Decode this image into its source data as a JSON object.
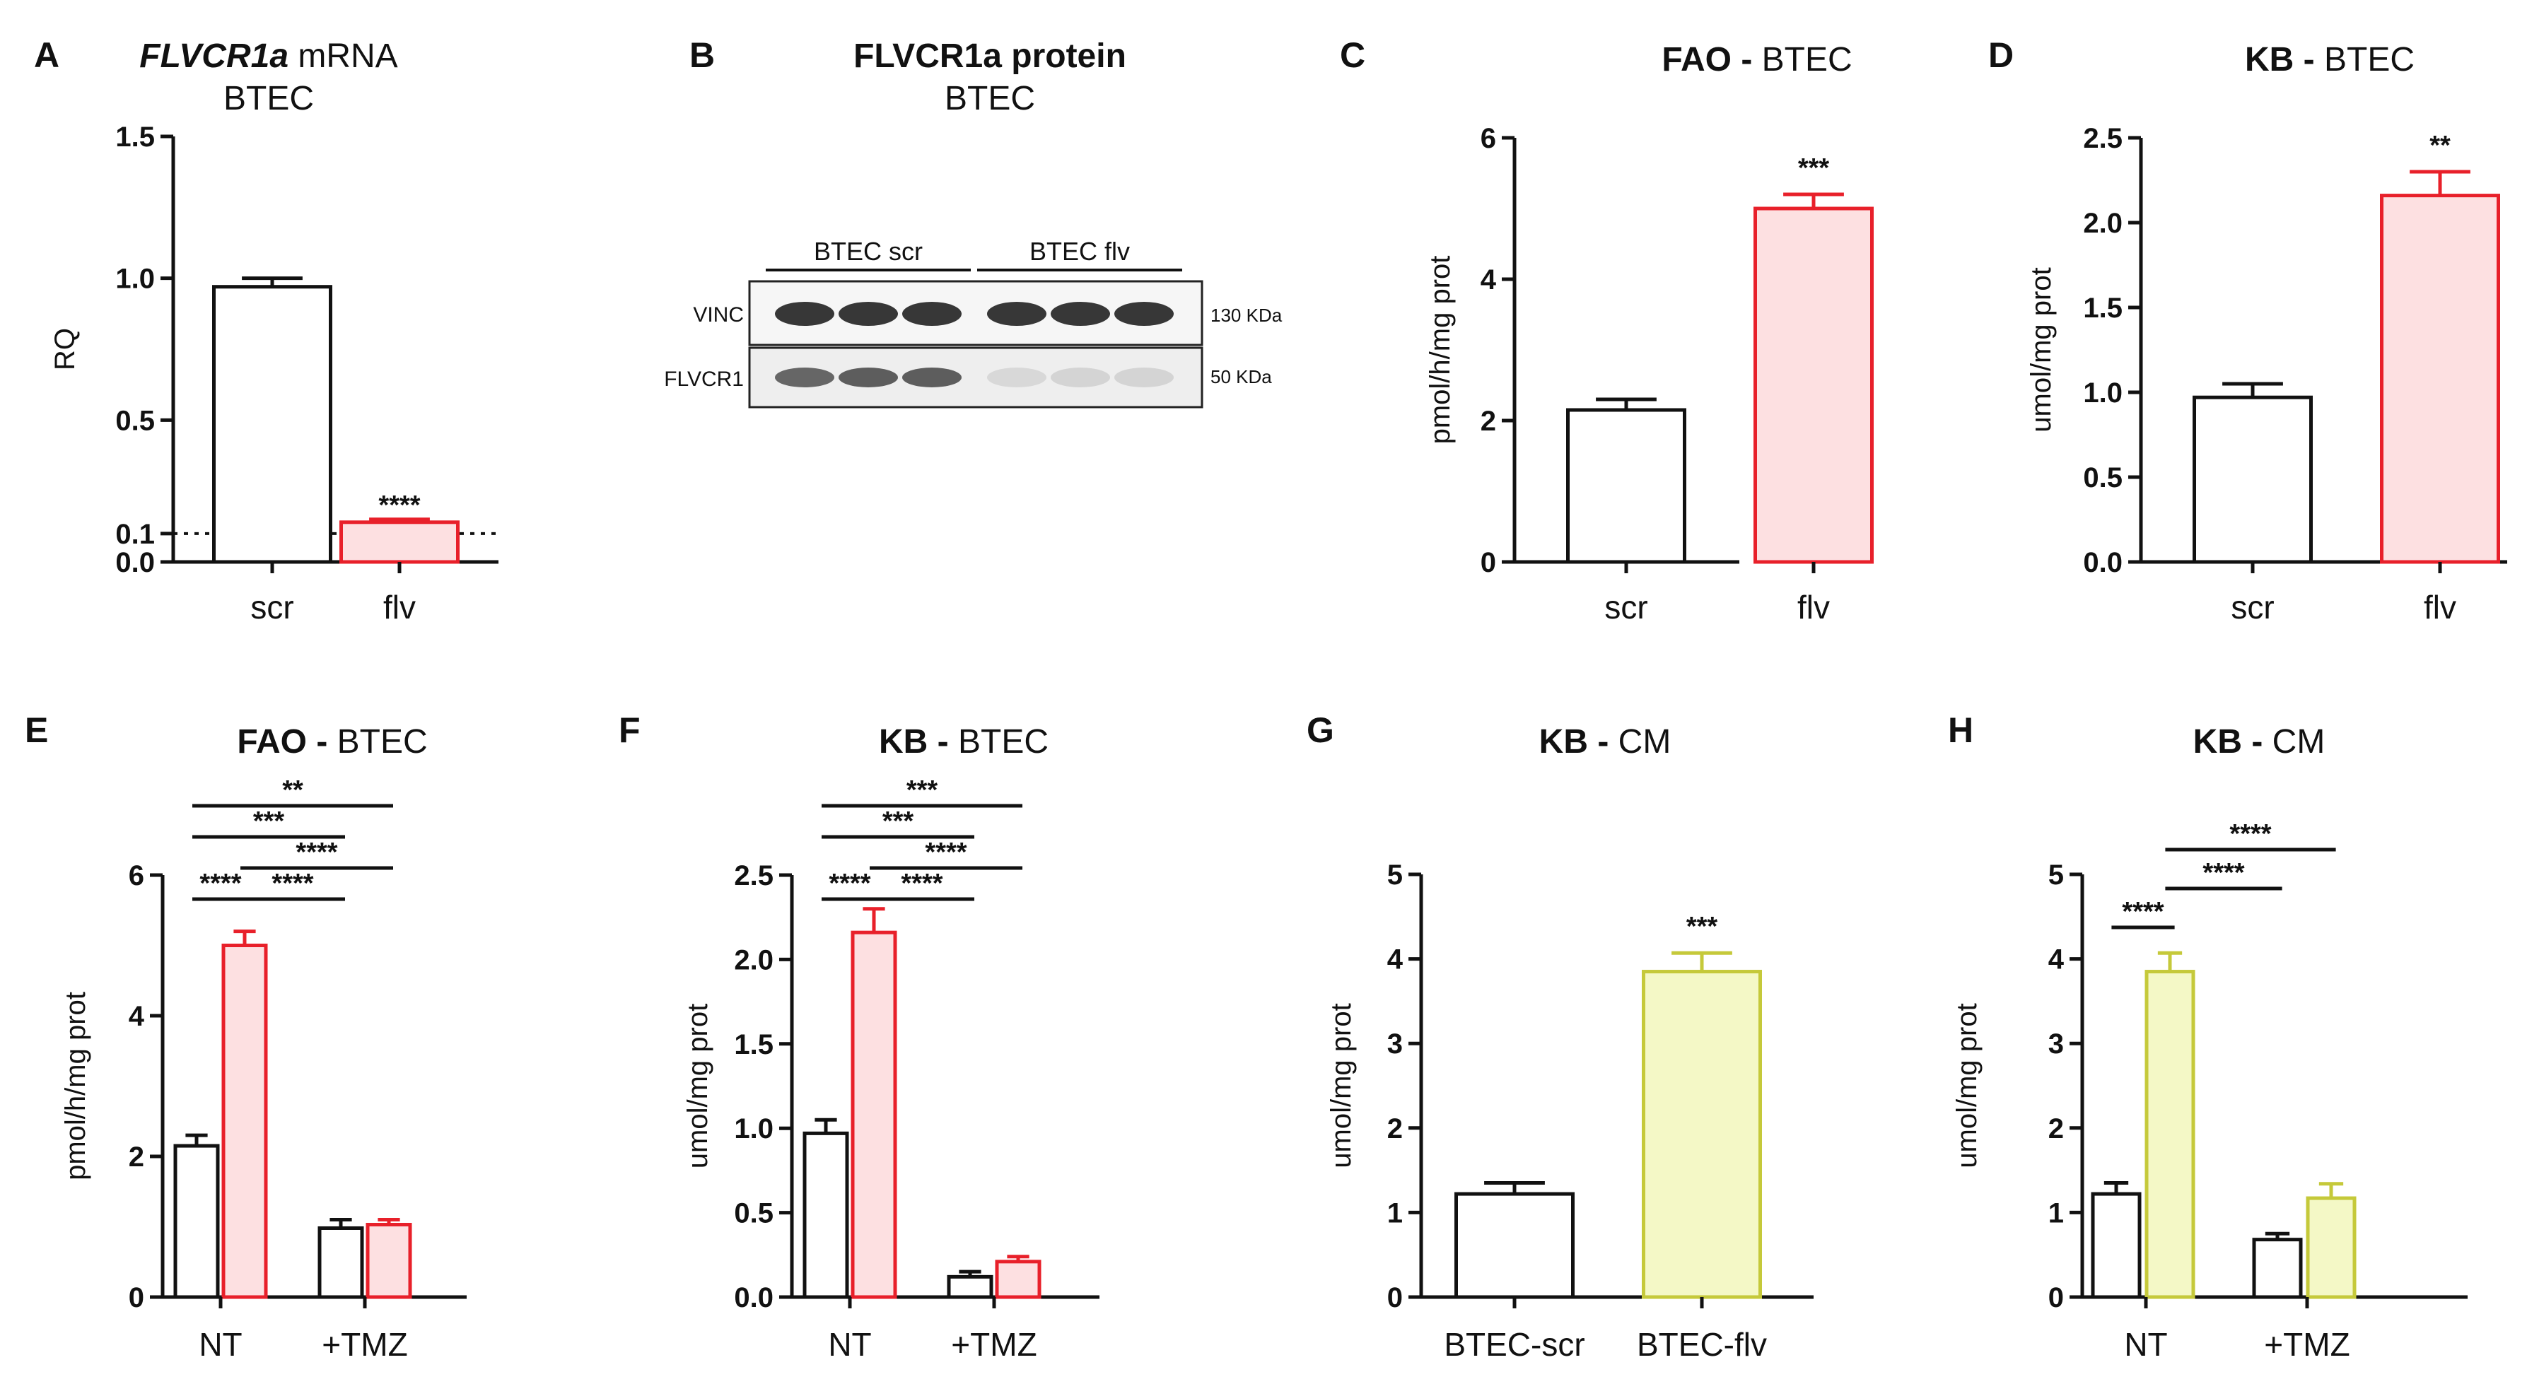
{
  "colors": {
    "axis": "#111111",
    "control_edge": "#111111",
    "control_fill": "#ffffff",
    "red_edge": "#e8202a",
    "red_fill": "#fde0e1",
    "yellow_edge": "#c5c93a",
    "yellow_fill": "#f4f8c6"
  },
  "chart_data": [
    {
      "id": "A",
      "panel_letter": "A",
      "type": "bar",
      "title_bold": "FLVCR1a",
      "title_rest": " mRNA",
      "title_italic": true,
      "subtitle": "BTEC",
      "ylabel": "RQ",
      "ylim": [
        0,
        1.5
      ],
      "yticks": [
        {
          "v": 0,
          "label": "0.0"
        },
        {
          "v": 0.1,
          "label": "0.1"
        },
        {
          "v": 0.5,
          "label": "0.5"
        },
        {
          "v": 1.0,
          "label": "1.0"
        },
        {
          "v": 1.5,
          "label": "1.5"
        }
      ],
      "categories": [
        "scr",
        "flv"
      ],
      "bars": [
        {
          "x": 0,
          "value": 0.97,
          "error": 0.03,
          "style": "control"
        },
        {
          "x": 1,
          "value": 0.14,
          "error": 0.01,
          "style": "red"
        }
      ],
      "reference_line": 0.1,
      "significance_above": [
        {
          "bar": 1,
          "label": "****"
        }
      ],
      "brackets": []
    },
    {
      "id": "C",
      "panel_letter": "C",
      "type": "bar",
      "title_bold": "FAO - ",
      "title_rest": "BTEC",
      "ylabel": "pmol/h/mg prot",
      "ylim": [
        0,
        6
      ],
      "yticks": [
        {
          "v": 0,
          "label": "0"
        },
        {
          "v": 2,
          "label": "2"
        },
        {
          "v": 4,
          "label": "4"
        },
        {
          "v": 6,
          "label": "6"
        }
      ],
      "categories": [
        "scr",
        "flv"
      ],
      "bars": [
        {
          "x": 0,
          "value": 2.15,
          "error": 0.15,
          "style": "control"
        },
        {
          "x": 1,
          "value": 5.0,
          "error": 0.2,
          "style": "red"
        }
      ],
      "significance_above": [
        {
          "bar": 1,
          "label": "***"
        }
      ],
      "brackets": []
    },
    {
      "id": "D",
      "panel_letter": "D",
      "type": "bar",
      "title_bold": "KB - ",
      "title_rest": "BTEC",
      "ylabel": "umol/mg prot",
      "ylim": [
        0,
        2.5
      ],
      "yticks": [
        {
          "v": 0,
          "label": "0.0"
        },
        {
          "v": 0.5,
          "label": "0.5"
        },
        {
          "v": 1.0,
          "label": "1.0"
        },
        {
          "v": 1.5,
          "label": "1.5"
        },
        {
          "v": 2.0,
          "label": "2.0"
        },
        {
          "v": 2.5,
          "label": "2.5"
        }
      ],
      "categories": [
        "scr",
        "flv"
      ],
      "bars": [
        {
          "x": 0,
          "value": 0.97,
          "error": 0.08,
          "style": "control"
        },
        {
          "x": 1,
          "value": 2.16,
          "error": 0.14,
          "style": "red"
        }
      ],
      "significance_above": [
        {
          "bar": 1,
          "label": "**"
        }
      ],
      "brackets": []
    },
    {
      "id": "E",
      "panel_letter": "E",
      "type": "bar",
      "title_bold": "FAO - ",
      "title_rest": "BTEC",
      "ylabel": "pmol/h/mg prot",
      "ylim": [
        0,
        6
      ],
      "yticks": [
        {
          "v": 0,
          "label": "0"
        },
        {
          "v": 2,
          "label": "2"
        },
        {
          "v": 4,
          "label": "4"
        },
        {
          "v": 6,
          "label": "6"
        }
      ],
      "categories": [
        "NT",
        "+TMZ"
      ],
      "bars": [
        {
          "x": 0,
          "value": 2.15,
          "error": 0.15,
          "style": "control"
        },
        {
          "x": 1,
          "value": 5.0,
          "error": 0.2,
          "style": "red"
        },
        {
          "x": 3,
          "value": 0.98,
          "error": 0.12,
          "style": "control"
        },
        {
          "x": 4,
          "value": 1.03,
          "error": 0.07,
          "style": "red"
        }
      ],
      "significance_above": [],
      "brackets": [
        {
          "from": 0,
          "to": 4,
          "level": 4,
          "label": "**"
        },
        {
          "from": 0,
          "to": 3,
          "level": 3,
          "label": "***"
        },
        {
          "from": 1,
          "to": 4,
          "level": 2,
          "label": "****"
        },
        {
          "from": 0,
          "to": 1,
          "level": 1,
          "label": "****"
        },
        {
          "from": 1,
          "to": 3,
          "level": 1,
          "label": "****"
        }
      ]
    },
    {
      "id": "F",
      "panel_letter": "F",
      "type": "bar",
      "title_bold": "KB - ",
      "title_rest": "BTEC",
      "ylabel": "umol/mg prot",
      "ylim": [
        0,
        2.5
      ],
      "yticks": [
        {
          "v": 0,
          "label": "0.0"
        },
        {
          "v": 0.5,
          "label": "0.5"
        },
        {
          "v": 1.0,
          "label": "1.0"
        },
        {
          "v": 1.5,
          "label": "1.5"
        },
        {
          "v": 2.0,
          "label": "2.0"
        },
        {
          "v": 2.5,
          "label": "2.5"
        }
      ],
      "categories": [
        "NT",
        "+TMZ"
      ],
      "bars": [
        {
          "x": 0,
          "value": 0.97,
          "error": 0.08,
          "style": "control"
        },
        {
          "x": 1,
          "value": 2.16,
          "error": 0.14,
          "style": "red"
        },
        {
          "x": 3,
          "value": 0.12,
          "error": 0.03,
          "style": "control"
        },
        {
          "x": 4,
          "value": 0.21,
          "error": 0.03,
          "style": "red"
        }
      ],
      "significance_above": [],
      "brackets": [
        {
          "from": 0,
          "to": 4,
          "level": 4,
          "label": "***"
        },
        {
          "from": 0,
          "to": 3,
          "level": 3,
          "label": "***"
        },
        {
          "from": 1,
          "to": 4,
          "level": 2,
          "label": "****"
        },
        {
          "from": 0,
          "to": 1,
          "level": 1,
          "label": "****"
        },
        {
          "from": 1,
          "to": 3,
          "level": 1,
          "label": "****"
        }
      ]
    },
    {
      "id": "G",
      "panel_letter": "G",
      "type": "bar",
      "title_bold": "KB - ",
      "title_rest": "CM",
      "ylabel": "umol/mg prot",
      "ylim": [
        0,
        5
      ],
      "yticks": [
        {
          "v": 0,
          "label": "0"
        },
        {
          "v": 1,
          "label": "1"
        },
        {
          "v": 2,
          "label": "2"
        },
        {
          "v": 3,
          "label": "3"
        },
        {
          "v": 4,
          "label": "4"
        },
        {
          "v": 5,
          "label": "5"
        }
      ],
      "categories": [
        "BTEC-scr",
        "BTEC-flv"
      ],
      "bars": [
        {
          "x": 0,
          "value": 1.22,
          "error": 0.13,
          "style": "control"
        },
        {
          "x": 1,
          "value": 3.85,
          "error": 0.22,
          "style": "yellow"
        }
      ],
      "significance_above": [
        {
          "bar": 1,
          "label": "***"
        }
      ],
      "brackets": []
    },
    {
      "id": "H",
      "panel_letter": "H",
      "type": "bar",
      "title_bold": "KB - ",
      "title_rest": "CM",
      "ylabel": "umol/mg prot",
      "ylim": [
        0,
        5
      ],
      "yticks": [
        {
          "v": 0,
          "label": "0"
        },
        {
          "v": 1,
          "label": "1"
        },
        {
          "v": 2,
          "label": "2"
        },
        {
          "v": 3,
          "label": "3"
        },
        {
          "v": 4,
          "label": "4"
        },
        {
          "v": 5,
          "label": "5"
        }
      ],
      "categories": [
        "NT",
        "+TMZ"
      ],
      "bars": [
        {
          "x": 0,
          "value": 1.22,
          "error": 0.13,
          "style": "control"
        },
        {
          "x": 1,
          "value": 3.85,
          "error": 0.22,
          "style": "yellow"
        },
        {
          "x": 3,
          "value": 0.68,
          "error": 0.07,
          "style": "control"
        },
        {
          "x": 4,
          "value": 1.17,
          "error": 0.17,
          "style": "yellow"
        }
      ],
      "significance_above": [],
      "brackets": [
        {
          "from": 0,
          "to": 1,
          "level": 1,
          "label": "****"
        },
        {
          "from": 1,
          "to": 3,
          "level": 2,
          "label": "****"
        },
        {
          "from": 1,
          "to": 4,
          "level": 3,
          "label": "****"
        }
      ]
    }
  ],
  "blot": {
    "panel_letter": "B",
    "title_bold": "FLVCR1a protein",
    "subtitle": "BTEC",
    "groups": [
      "BTEC scr",
      "BTEC flv"
    ],
    "rows": [
      {
        "label": "VINC",
        "kda": "130 KDa",
        "intensities": [
          0.95,
          0.95,
          0.95,
          0.95,
          0.95,
          0.95
        ]
      },
      {
        "label": "FLVCR1",
        "kda": "50 KDa",
        "intensities": [
          0.7,
          0.75,
          0.75,
          0.1,
          0.12,
          0.12
        ]
      }
    ]
  }
}
